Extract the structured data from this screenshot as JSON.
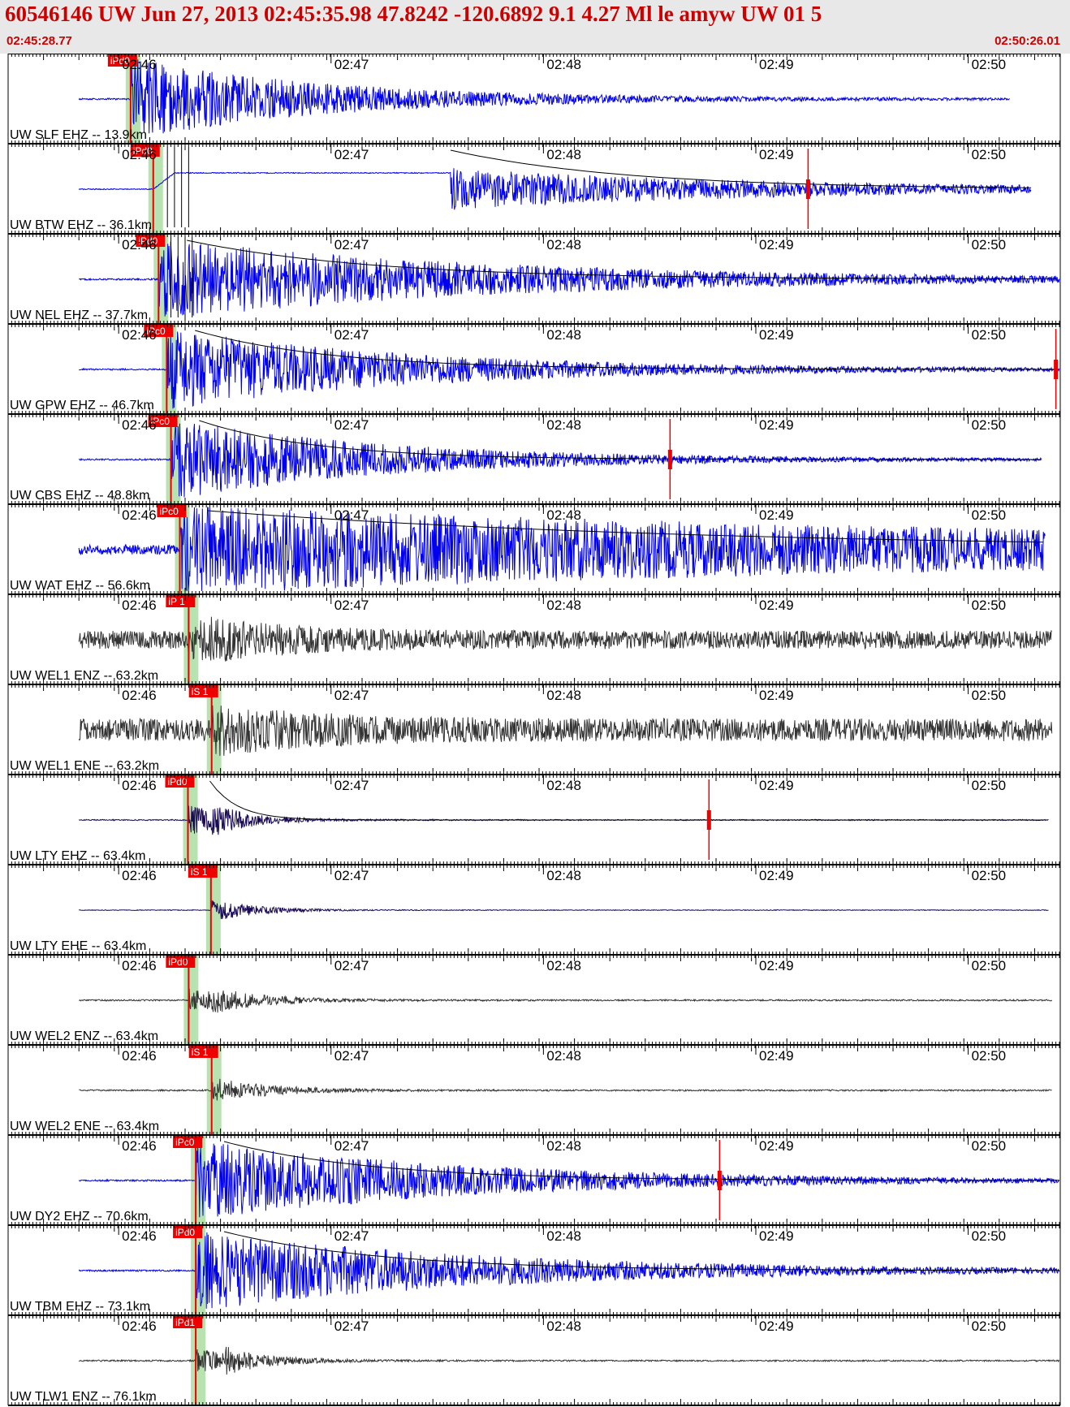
{
  "header": {
    "title": "60546146 UW Jun 27, 2013 02:45:35.98   47.8242 -120.6892  9.1 4.27 Ml le amyw UW 01   5",
    "start_time": "02:45:28.77",
    "end_time": "02:50:26.01"
  },
  "colors": {
    "background": "#ffffff",
    "header_bg": "#e8e8e8",
    "title": "#cc0000",
    "trace_blue": "#0000ee",
    "trace_dark": "#333333",
    "trace_navy": "#1a0a55",
    "pick": "#ee0000",
    "pick_window": "#b8e2b0",
    "axis": "#000000",
    "grid_text": "#000000"
  },
  "chart_data": {
    "type": "line",
    "xlabel": "",
    "ylabel": "",
    "x_range": [
      "02:45:28.77",
      "02:50:26.01"
    ],
    "time_ticks": [
      "02:46",
      "02:47",
      "02:48",
      "02:49",
      "02:50"
    ],
    "panels": [
      {
        "label": "UW SLF EHZ -- 13.9km",
        "pick": "iPd0",
        "pick_time_s": 34.6,
        "color": "blue",
        "trace": "clipped",
        "amp": 1.0,
        "decay_s": 55,
        "noise": 0.02,
        "end_s": 283,
        "decay_curve": false,
        "second_arrival_s": null,
        "marker_s": null,
        "extra_pick_lines_s": []
      },
      {
        "label": "UW BTW EHZ -- 36.1km",
        "pick": "iPd0",
        "pick_time_s": 41.0,
        "color": "blue",
        "trace": "offset",
        "amp": 0.55,
        "decay_s": 90,
        "noise": 0.02,
        "end_s": 289,
        "decay_curve": true,
        "second_arrival_s": 125,
        "marker_s": 226,
        "extra_pick_lines_s": [
          45,
          47,
          49,
          51
        ]
      },
      {
        "label": "UW NEL EHZ -- 37.7km",
        "pick": "iPd0",
        "pick_time_s": 42.5,
        "color": "blue",
        "trace": "clipped",
        "amp": 1.0,
        "decay_s": 95,
        "noise": 0.02,
        "end_s": 297,
        "decay_curve": true,
        "second_arrival_s": null,
        "marker_s": null,
        "extra_pick_lines_s": [
          46,
          48,
          50,
          52
        ]
      },
      {
        "label": "UW GPW EHZ -- 46.7km",
        "pick": "iPc0",
        "pick_time_s": 44.8,
        "color": "blue",
        "trace": "clipped",
        "amp": 1.0,
        "decay_s": 70,
        "noise": 0.02,
        "end_s": 297,
        "decay_curve": true,
        "second_arrival_s": null,
        "marker_s": 296,
        "extra_pick_lines_s": []
      },
      {
        "label": "UW CBS EHZ -- 48.8km",
        "pick": "iPc0",
        "pick_time_s": 46.0,
        "color": "blue",
        "trace": "clipped",
        "amp": 1.0,
        "decay_s": 60,
        "noise": 0.02,
        "end_s": 292,
        "decay_curve": true,
        "second_arrival_s": null,
        "marker_s": 187,
        "extra_pick_lines_s": []
      },
      {
        "label": "UW WAT EHZ -- 56.6km",
        "pick": "iPc0",
        "pick_time_s": 48.5,
        "color": "blue",
        "trace": "clipped",
        "amp": 1.0,
        "decay_s": 260,
        "noise": 0.12,
        "end_s": 293,
        "decay_curve": true,
        "second_arrival_s": null,
        "marker_s": null,
        "extra_pick_lines_s": []
      },
      {
        "label": "UW WEL1 ENZ -- 63.2km",
        "pick": "iP 1",
        "pick_time_s": 51.0,
        "color": "dark",
        "trace": "noisy",
        "amp": 0.35,
        "decay_s": 30,
        "noise": 0.24,
        "end_s": 295,
        "decay_curve": false,
        "second_arrival_s": 57,
        "marker_s": null,
        "extra_pick_lines_s": []
      },
      {
        "label": "UW WEL1 ENE -- 63.2km",
        "pick": "iS 1",
        "pick_time_s": 57.5,
        "color": "dark",
        "trace": "noisy",
        "amp": 0.45,
        "decay_s": 30,
        "noise": 0.3,
        "end_s": 295,
        "decay_curve": false,
        "second_arrival_s": null,
        "marker_s": null,
        "extra_pick_lines_s": []
      },
      {
        "label": "UW LTY EHZ -- 63.4km",
        "pick": "iPd0",
        "pick_time_s": 50.8,
        "color": "navy",
        "trace": "normal",
        "amp": 0.4,
        "decay_s": 14,
        "noise": 0.015,
        "end_s": 294,
        "decay_curve": true,
        "second_arrival_s": 57,
        "marker_s": 198,
        "extra_pick_lines_s": []
      },
      {
        "label": "UW LTY EHE -- 63.4km",
        "pick": "iS 1",
        "pick_time_s": 57.3,
        "color": "navy",
        "trace": "normal",
        "amp": 0.32,
        "decay_s": 12,
        "noise": 0.01,
        "end_s": 294,
        "decay_curve": false,
        "second_arrival_s": null,
        "marker_s": null,
        "extra_pick_lines_s": []
      },
      {
        "label": "UW WEL2 ENZ -- 63.4km",
        "pick": "iPd0",
        "pick_time_s": 51.0,
        "color": "dark",
        "trace": "normal",
        "amp": 0.3,
        "decay_s": 18,
        "noise": 0.02,
        "end_s": 295,
        "decay_curve": false,
        "second_arrival_s": 57.5,
        "marker_s": null,
        "extra_pick_lines_s": []
      },
      {
        "label": "UW WEL2 ENE -- 63.4km",
        "pick": "iS 1",
        "pick_time_s": 57.5,
        "color": "dark",
        "trace": "normal",
        "amp": 0.35,
        "decay_s": 16,
        "noise": 0.02,
        "end_s": 295,
        "decay_curve": false,
        "second_arrival_s": null,
        "marker_s": null,
        "extra_pick_lines_s": []
      },
      {
        "label": "UW DY2 EHZ -- 70.6km",
        "pick": "iPc0",
        "pick_time_s": 53.0,
        "color": "blue",
        "trace": "clipped",
        "amp": 1.0,
        "decay_s": 75,
        "noise": 0.02,
        "end_s": 297,
        "decay_curve": true,
        "second_arrival_s": null,
        "marker_s": 201,
        "extra_pick_lines_s": []
      },
      {
        "label": "UW TBM EHZ -- 73.1km",
        "pick": "iPd0",
        "pick_time_s": 53.0,
        "color": "blue",
        "trace": "clipped",
        "amp": 1.0,
        "decay_s": 80,
        "noise": 0.02,
        "end_s": 297,
        "decay_curve": true,
        "second_arrival_s": null,
        "marker_s": null,
        "extra_pick_lines_s": []
      },
      {
        "label": "UW TLW1 ENZ -- 76.1km",
        "pick": "iPd1",
        "pick_time_s": 53.0,
        "color": "dark",
        "trace": "normal",
        "amp": 0.32,
        "decay_s": 16,
        "noise": 0.02,
        "end_s": 297,
        "decay_curve": false,
        "second_arrival_s": 61,
        "marker_s": null,
        "extra_pick_lines_s": []
      }
    ]
  }
}
